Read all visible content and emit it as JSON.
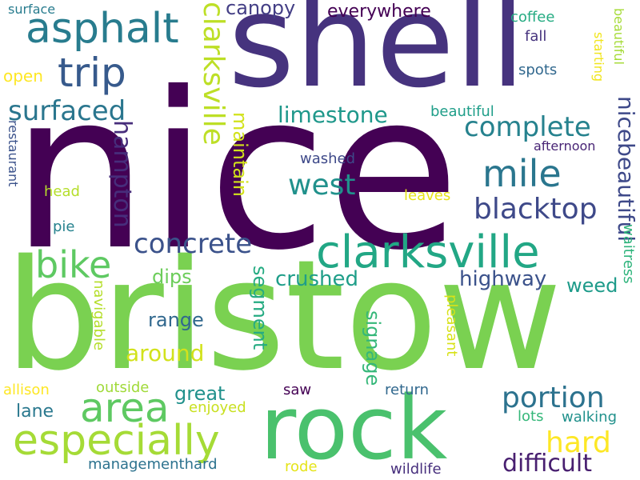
{
  "cloud": {
    "words": [
      {
        "text": "nice",
        "color": "#440154"
      },
      {
        "text": "bristow",
        "color": "#7ad151"
      },
      {
        "text": "shell",
        "color": "#46337e"
      },
      {
        "text": "rock",
        "color": "#4ac16d"
      },
      {
        "text": "clarksville",
        "color": "#22a785"
      },
      {
        "text": "especially",
        "color": "#a5db36"
      },
      {
        "text": "area",
        "color": "#5ec962"
      },
      {
        "text": "asphalt",
        "color": "#287c8e"
      },
      {
        "text": "trip",
        "color": "#375a8c"
      },
      {
        "text": "bike",
        "color": "#5ec962"
      },
      {
        "text": "mile",
        "color": "#2a768e"
      },
      {
        "text": "complete",
        "color": "#26828e"
      },
      {
        "text": "west",
        "color": "#21918c"
      },
      {
        "text": "blacktop",
        "color": "#3e4989"
      },
      {
        "text": "concrete",
        "color": "#3b528b"
      },
      {
        "text": "portion",
        "color": "#2c728e"
      },
      {
        "text": "difficult",
        "color": "#481f70"
      },
      {
        "text": "hard",
        "color": "#fde725"
      },
      {
        "text": "surfaced",
        "color": "#2a768e"
      },
      {
        "text": "clarksville",
        "color": "#bddf26"
      },
      {
        "text": "hampton",
        "color": "#472d7b"
      },
      {
        "text": "limestone",
        "color": "#1f988b"
      },
      {
        "text": "crushed",
        "color": "#1f9e89"
      },
      {
        "text": "highway",
        "color": "#3b528b"
      },
      {
        "text": "weed",
        "color": "#1e9b8a"
      },
      {
        "text": "maintain",
        "color": "#d2e21b"
      },
      {
        "text": "segment",
        "color": "#25ab82"
      },
      {
        "text": "signage",
        "color": "#35b779"
      },
      {
        "text": "canopy",
        "color": "#433e85"
      },
      {
        "text": "everywhere",
        "color": "#440154"
      },
      {
        "text": "nicebeautiful",
        "color": "#3e4989"
      },
      {
        "text": "around",
        "color": "#d2e21b"
      },
      {
        "text": "range",
        "color": "#31688e"
      },
      {
        "text": "dips",
        "color": "#6ccd5a"
      },
      {
        "text": "great",
        "color": "#21918c"
      },
      {
        "text": "lane",
        "color": "#2a788e"
      },
      {
        "text": "managementhard",
        "color": "#2c728e"
      },
      {
        "text": "wildlife",
        "color": "#472f7d"
      },
      {
        "text": "rode",
        "color": "#e5e419"
      },
      {
        "text": "walking",
        "color": "#21918c"
      },
      {
        "text": "lots",
        "color": "#35b779"
      },
      {
        "text": "return",
        "color": "#31688e"
      },
      {
        "text": "saw",
        "color": "#440154"
      },
      {
        "text": "enjoyed",
        "color": "#c8e020"
      },
      {
        "text": "outside",
        "color": "#a0da39"
      },
      {
        "text": "allison",
        "color": "#fde725"
      },
      {
        "text": "navigable",
        "color": "#b5de2b"
      },
      {
        "text": "pleasant",
        "color": "#d8e219"
      },
      {
        "text": "waitress",
        "color": "#2fb47c"
      },
      {
        "text": "leaves",
        "color": "#e5e419"
      },
      {
        "text": "washed",
        "color": "#3e4989"
      },
      {
        "text": "afternoon",
        "color": "#482475"
      },
      {
        "text": "beautiful",
        "color": "#1f9e89"
      },
      {
        "text": "spots",
        "color": "#31688e"
      },
      {
        "text": "fall",
        "color": "#46337e"
      },
      {
        "text": "coffee",
        "color": "#25ab82"
      },
      {
        "text": "starting",
        "color": "#f1e51d"
      },
      {
        "text": "beautiful",
        "color": "#a5db36"
      },
      {
        "text": "open",
        "color": "#fde725"
      },
      {
        "text": "surface",
        "color": "#287c8e"
      },
      {
        "text": "restaurant",
        "color": "#3b528b"
      },
      {
        "text": "head",
        "color": "#b5de2b"
      },
      {
        "text": "pie",
        "color": "#26828e"
      }
    ]
  }
}
